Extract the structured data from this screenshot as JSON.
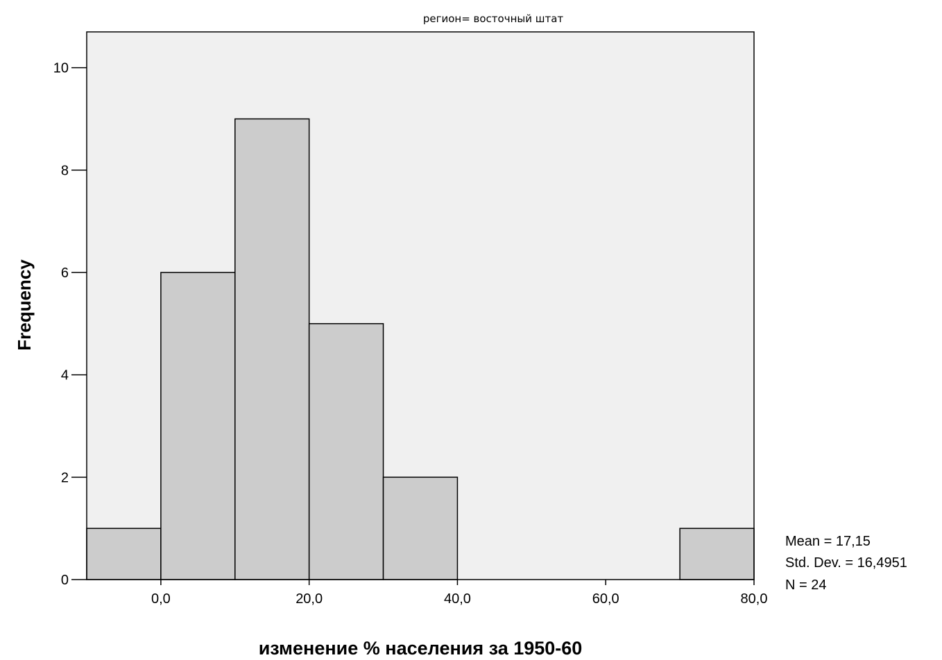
{
  "chart_data": {
    "type": "bar",
    "subtype": "histogram",
    "title": "регион= восточный штат",
    "xlabel": "изменение % населения за 1950-60",
    "ylabel": "Frequency",
    "bins": [
      {
        "start": -10,
        "end": 0,
        "value": 1
      },
      {
        "start": 0,
        "end": 10,
        "value": 6
      },
      {
        "start": 10,
        "end": 20,
        "value": 9
      },
      {
        "start": 20,
        "end": 30,
        "value": 5
      },
      {
        "start": 30,
        "end": 40,
        "value": 2
      },
      {
        "start": 40,
        "end": 50,
        "value": 0
      },
      {
        "start": 50,
        "end": 60,
        "value": 0
      },
      {
        "start": 60,
        "end": 70,
        "value": 0
      },
      {
        "start": 70,
        "end": 80,
        "value": 1
      }
    ],
    "xlim": [
      -10,
      80
    ],
    "ylim": [
      0,
      10.7
    ],
    "x_ticks": [
      0,
      20,
      40,
      60,
      80
    ],
    "x_tick_labels": [
      "0,0",
      "20,0",
      "40,0",
      "60,0",
      "80,0"
    ],
    "y_ticks": [
      0,
      2,
      4,
      6,
      8,
      10
    ],
    "y_tick_labels": [
      "0",
      "2",
      "4",
      "6",
      "8",
      "10"
    ],
    "grid": false,
    "legend": "none",
    "colors": {
      "plot_background": "#f0f0f0",
      "bar_fill": "#cccccc",
      "bar_stroke": "#000000"
    },
    "stats": {
      "mean": "Mean = 17,15",
      "std_dev": "Std. Dev. = 16,4951",
      "n": "N = 24"
    }
  }
}
